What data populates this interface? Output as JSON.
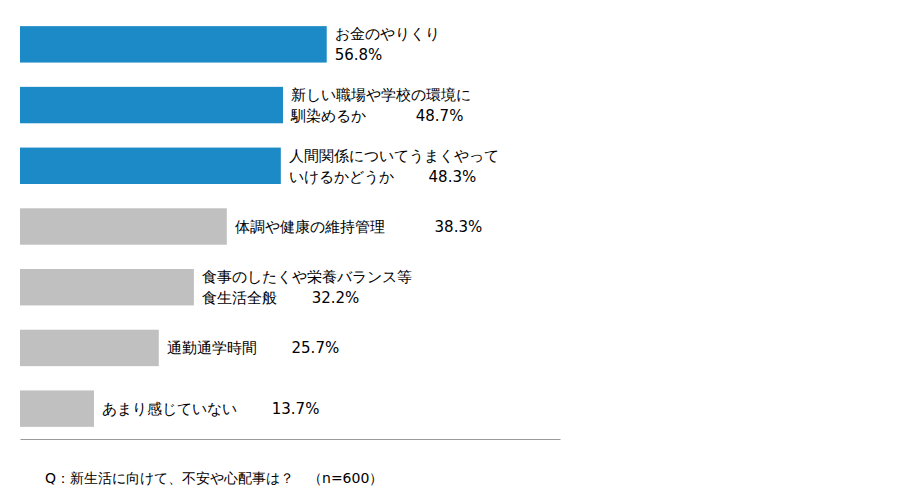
{
  "chart_data": {
    "type": "bar",
    "orientation": "horizontal",
    "categories": [
      "お金のやりくり\n56.8%",
      "新しい職場や学校の環境に\n馴染めるか　　　 48.7%",
      "人間関係についてうまくやって\nいけるかどうか　　 48.3%",
      "体調や健康の維持管理　　　 38.3%",
      "食事のしたくや栄養バランス等\n食生活全般　　 32.2%",
      "通勤通学時間　　 25.7%",
      "あまり感じていない　　 13.7%"
    ],
    "values": [
      56.8,
      48.7,
      48.3,
      38.3,
      32.2,
      25.7,
      13.7
    ],
    "colors": [
      "#1b8ac6",
      "#1b8ac6",
      "#1b8ac6",
      "#c0c0c0",
      "#c0c0c0",
      "#c0c0c0",
      "#c0c0c0"
    ],
    "xlim": [
      0,
      100
    ],
    "tick_labels": false,
    "grid": false,
    "annotations": [
      "Q：新生活に向けて、不安や心配事は？　（n=600）"
    ]
  }
}
